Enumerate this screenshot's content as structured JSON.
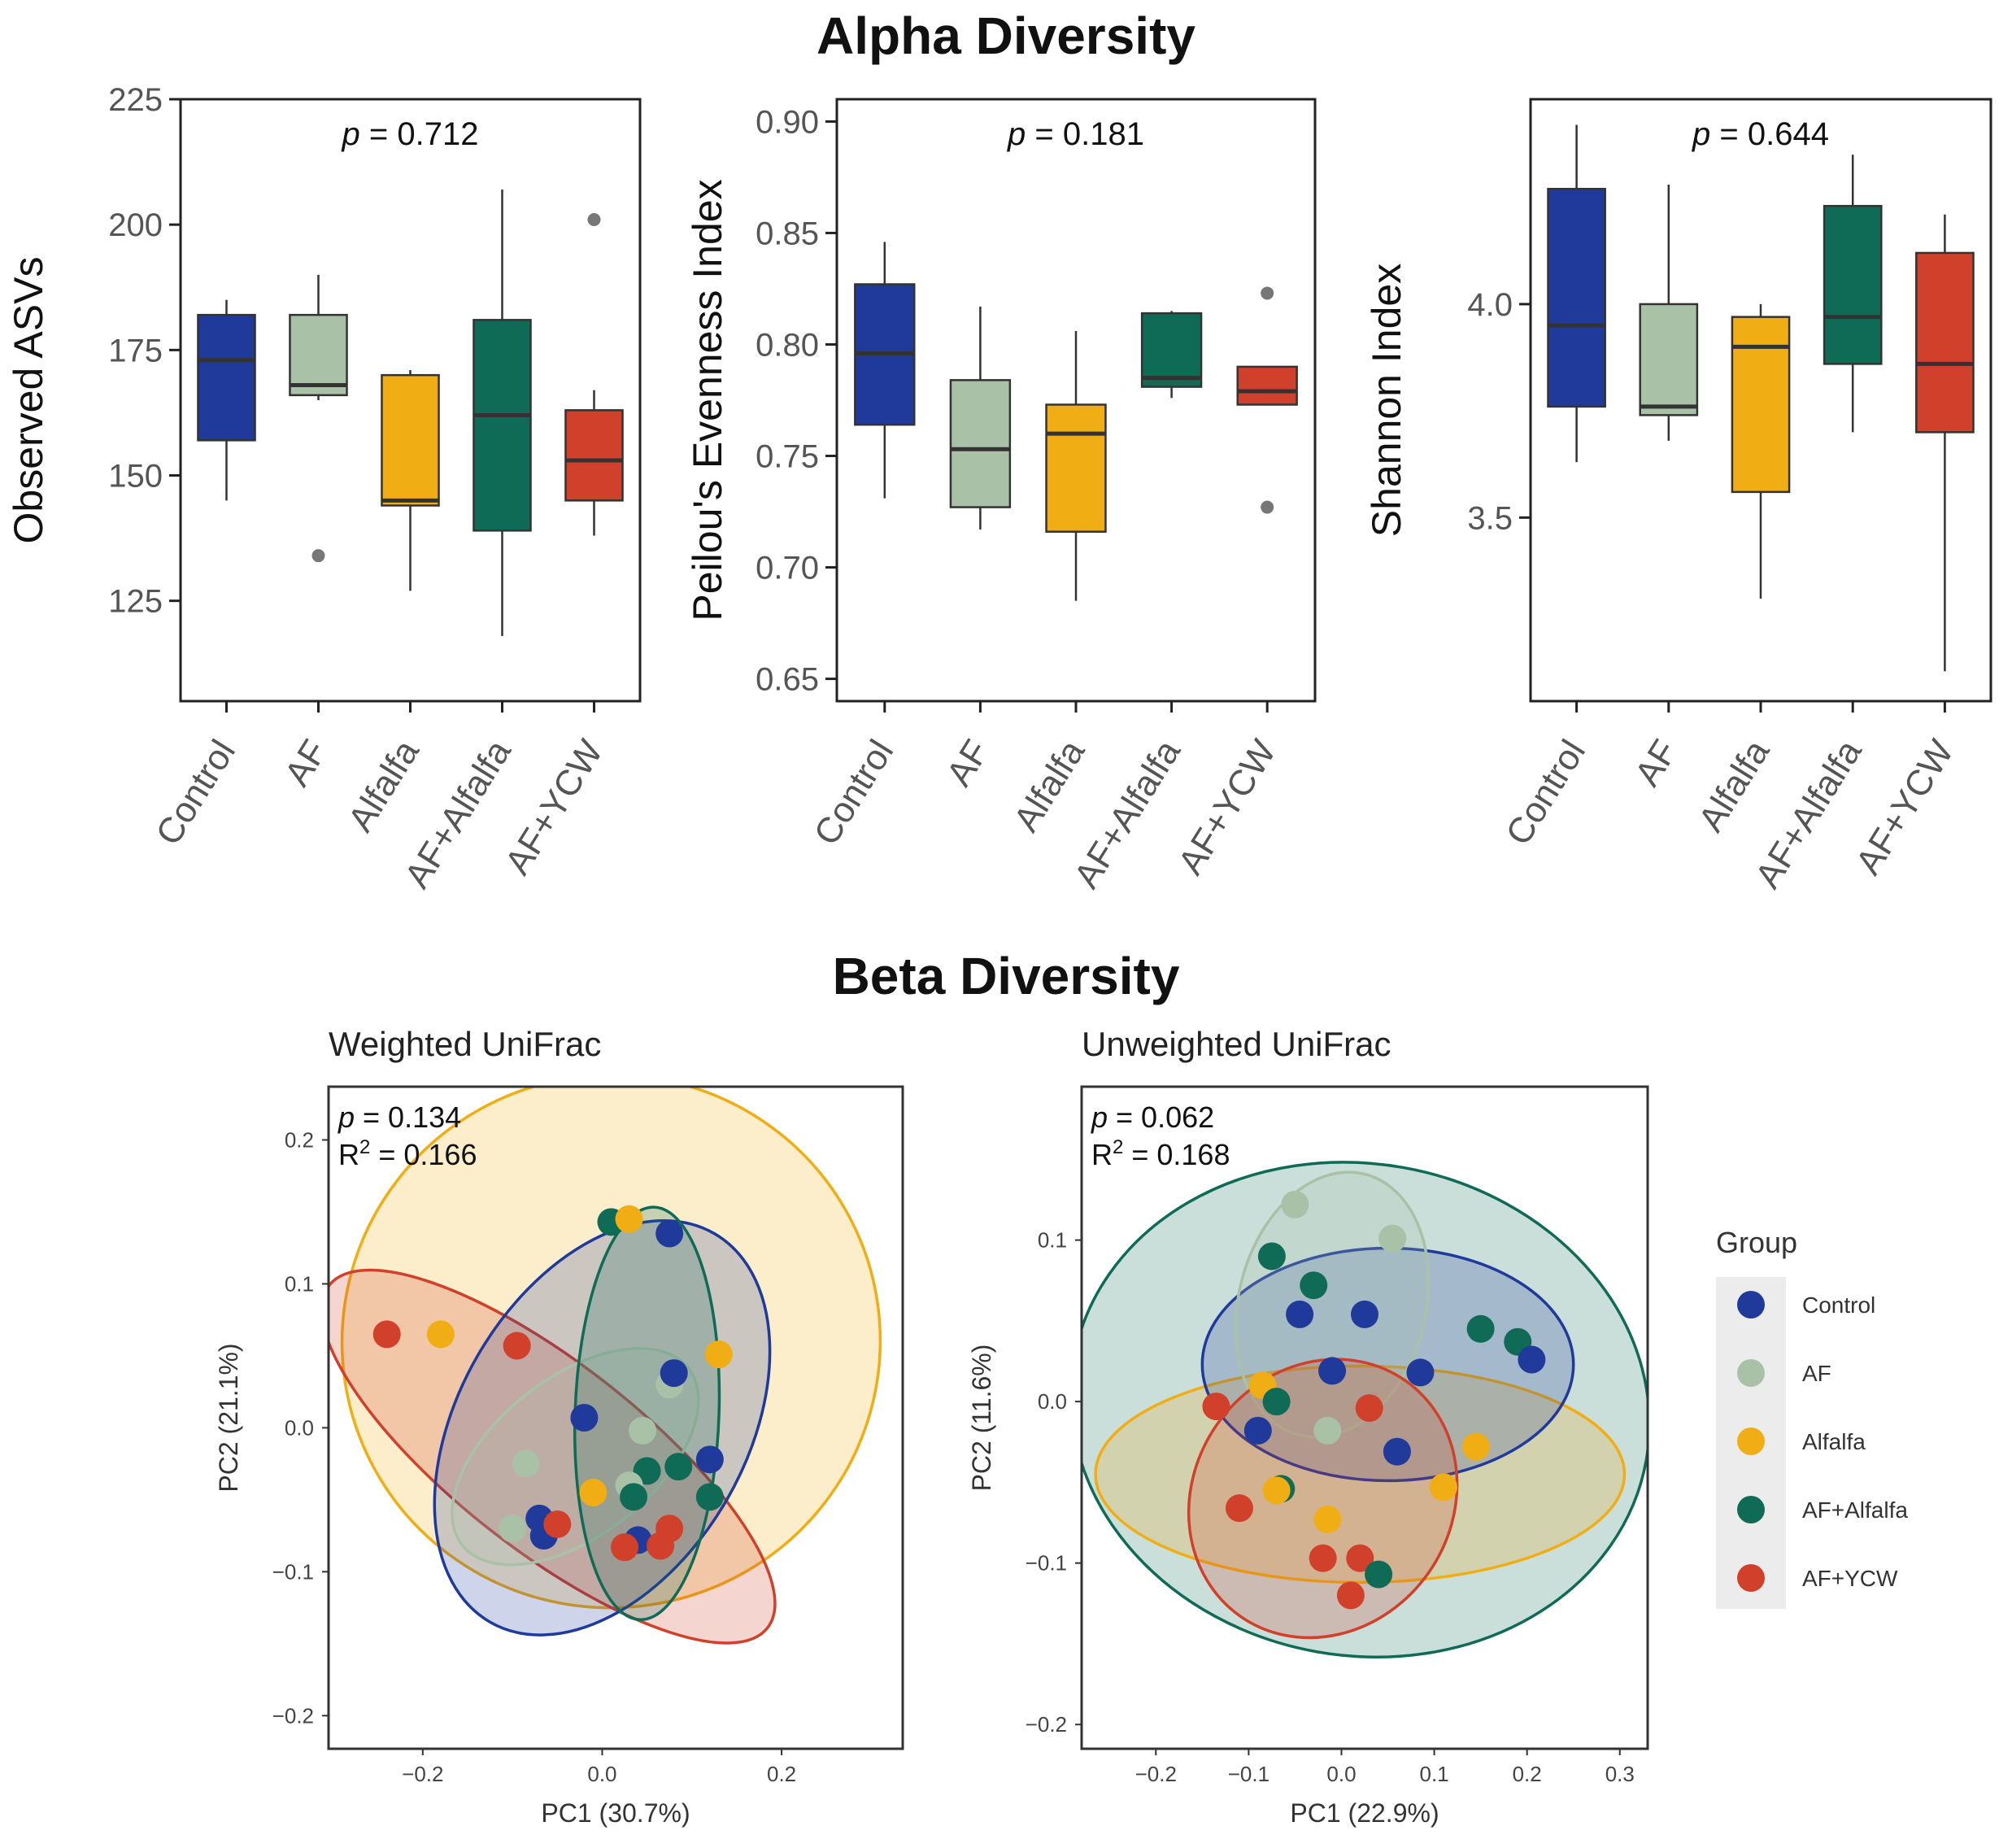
{
  "colors": {
    "Control": "#1f3a9b",
    "AF": "#a9c1a6",
    "Alfalfa": "#f0ad14",
    "AF+Alfalfa": "#0f6b56",
    "AF+YCW": "#d0402a"
  },
  "sections": {
    "alpha_title": "Alpha Diversity",
    "beta_title": "Beta Diversity"
  },
  "legend": {
    "title": "Group",
    "items": [
      "Control",
      "AF",
      "Alfalfa",
      "AF+Alfalfa",
      "AF+YCW"
    ]
  },
  "chart_data": [
    {
      "type": "box",
      "id": "observed",
      "ylabel": "Observed ASVs",
      "ylim": [
        105,
        225
      ],
      "yticks": [
        125,
        150,
        175,
        200,
        225
      ],
      "annotation": {
        "p_symbol": "p",
        "p_text": " = 0.712"
      },
      "categories": [
        "Control",
        "AF",
        "Alfalfa",
        "AF+Alfalfa",
        "AF+YCW"
      ],
      "boxes": [
        {
          "group": "Control",
          "whisker_low": 145,
          "q1": 157,
          "median": 173,
          "q3": 182,
          "whisker_high": 185,
          "outliers": []
        },
        {
          "group": "AF",
          "whisker_low": 165,
          "q1": 166,
          "median": 168,
          "q3": 182,
          "whisker_high": 190,
          "outliers": [
            134
          ]
        },
        {
          "group": "Alfalfa",
          "whisker_low": 127,
          "q1": 144,
          "median": 145,
          "q3": 170,
          "whisker_high": 171,
          "outliers": []
        },
        {
          "group": "AF+Alfalfa",
          "whisker_low": 118,
          "q1": 139,
          "median": 162,
          "q3": 181,
          "whisker_high": 207,
          "outliers": []
        },
        {
          "group": "AF+YCW",
          "whisker_low": 138,
          "q1": 145,
          "median": 153,
          "q3": 163,
          "whisker_high": 167,
          "outliers": [
            201
          ]
        }
      ]
    },
    {
      "type": "box",
      "id": "pielou",
      "ylabel": "Peilou's Evenness Index",
      "ylim": [
        0.64,
        0.91
      ],
      "yticks": [
        0.65,
        0.7,
        0.75,
        0.8,
        0.85,
        0.9
      ],
      "ytick_labels": [
        "0.65",
        "0.70",
        "0.75",
        "0.80",
        "0.85",
        "0.90"
      ],
      "annotation": {
        "p_symbol": "p",
        "p_text": " = 0.181"
      },
      "categories": [
        "Control",
        "AF",
        "Alfalfa",
        "AF+Alfalfa",
        "AF+YCW"
      ],
      "boxes": [
        {
          "group": "Control",
          "whisker_low": 0.731,
          "q1": 0.764,
          "median": 0.796,
          "q3": 0.827,
          "whisker_high": 0.846,
          "outliers": []
        },
        {
          "group": "AF",
          "whisker_low": 0.717,
          "q1": 0.727,
          "median": 0.753,
          "q3": 0.784,
          "whisker_high": 0.817,
          "outliers": []
        },
        {
          "group": "Alfalfa",
          "whisker_low": 0.685,
          "q1": 0.716,
          "median": 0.76,
          "q3": 0.773,
          "whisker_high": 0.806,
          "outliers": []
        },
        {
          "group": "AF+Alfalfa",
          "whisker_low": 0.776,
          "q1": 0.781,
          "median": 0.785,
          "q3": 0.814,
          "whisker_high": 0.815,
          "outliers": []
        },
        {
          "group": "AF+YCW",
          "whisker_low": 0.773,
          "q1": 0.773,
          "median": 0.779,
          "q3": 0.79,
          "whisker_high": 0.79,
          "outliers": [
            0.823,
            0.727
          ]
        }
      ]
    },
    {
      "type": "box",
      "id": "shannon",
      "ylabel": "Shannon Index",
      "ylim": [
        3.07,
        4.48
      ],
      "yticks": [
        3.5,
        4.0
      ],
      "ytick_labels": [
        "3.5",
        "4.0"
      ],
      "annotation": {
        "p_symbol": "p",
        "p_text": " = 0.644"
      },
      "categories": [
        "Control",
        "AF",
        "Alfalfa",
        "AF+Alfalfa",
        "AF+YCW"
      ],
      "boxes": [
        {
          "group": "Control",
          "whisker_low": 3.63,
          "q1": 3.76,
          "median": 3.95,
          "q3": 4.27,
          "whisker_high": 4.42,
          "outliers": []
        },
        {
          "group": "AF",
          "whisker_low": 3.68,
          "q1": 3.74,
          "median": 3.76,
          "q3": 4.0,
          "whisker_high": 4.28,
          "outliers": []
        },
        {
          "group": "Alfalfa",
          "whisker_low": 3.31,
          "q1": 3.56,
          "median": 3.9,
          "q3": 3.97,
          "whisker_high": 4.0,
          "outliers": []
        },
        {
          "group": "AF+Alfalfa",
          "whisker_low": 3.7,
          "q1": 3.86,
          "median": 3.97,
          "q3": 4.23,
          "whisker_high": 4.35,
          "outliers": []
        },
        {
          "group": "AF+YCW",
          "whisker_low": 3.14,
          "q1": 3.7,
          "median": 3.86,
          "q3": 4.12,
          "whisker_high": 4.21,
          "outliers": []
        }
      ]
    },
    {
      "type": "scatter",
      "id": "weighted",
      "title": "Weighted UniFrac",
      "xlabel": "PC1 (30.7%)",
      "ylabel": "PC2 (21.1%)",
      "xlim": [
        -0.305,
        0.335
      ],
      "ylim": [
        -0.223,
        0.237
      ],
      "xticks": [
        -0.2,
        0.0,
        0.2
      ],
      "xtick_labels": [
        "−0.2",
        "0.0",
        "0.2"
      ],
      "yticks": [
        -0.2,
        -0.1,
        0.0,
        0.1,
        0.2
      ],
      "ytick_labels": [
        "−0.2",
        "−0.1",
        "0.0",
        "0.1",
        "0.2"
      ],
      "annotation": {
        "p_symbol": "p",
        "p_text": " = 0.134",
        "r2_prefix": "R",
        "r2_sup": "2",
        "r2_text": " = 0.166"
      },
      "ellipses": [
        {
          "group": "Alfalfa",
          "cx": 0.01,
          "cy": 0.06,
          "rx": 0.3,
          "ry": 0.185,
          "angle": -8
        },
        {
          "group": "AF+YCW",
          "cx": -0.06,
          "cy": -0.02,
          "rx": 0.31,
          "ry": 0.065,
          "angle": 38
        },
        {
          "group": "Control",
          "cx": -0.0,
          "cy": -0.0,
          "rx": 0.25,
          "ry": 0.1,
          "angle": -60
        },
        {
          "group": "AF",
          "cx": -0.03,
          "cy": -0.02,
          "rx": 0.16,
          "ry": 0.055,
          "angle": -38
        },
        {
          "group": "AF+Alfalfa",
          "cx": 0.05,
          "cy": 0.01,
          "rx": 0.23,
          "ry": 0.05,
          "angle": -88
        }
      ],
      "points": [
        {
          "group": "AF+YCW",
          "x": -0.24,
          "y": 0.065
        },
        {
          "group": "Alfalfa",
          "x": -0.18,
          "y": 0.065
        },
        {
          "group": "AF+YCW",
          "x": -0.095,
          "y": 0.057
        },
        {
          "group": "AF+Alfalfa",
          "x": 0.01,
          "y": 0.143
        },
        {
          "group": "Alfalfa",
          "x": 0.03,
          "y": 0.145
        },
        {
          "group": "Control",
          "x": 0.075,
          "y": 0.135
        },
        {
          "group": "Alfalfa",
          "x": 0.13,
          "y": 0.051
        },
        {
          "group": "AF",
          "x": 0.075,
          "y": 0.03
        },
        {
          "group": "Control",
          "x": 0.08,
          "y": 0.038
        },
        {
          "group": "Control",
          "x": -0.02,
          "y": 0.007
        },
        {
          "group": "AF",
          "x": 0.045,
          "y": -0.002
        },
        {
          "group": "Control",
          "x": 0.12,
          "y": -0.022
        },
        {
          "group": "AF+Alfalfa",
          "x": 0.085,
          "y": -0.027
        },
        {
          "group": "AF+Alfalfa",
          "x": 0.05,
          "y": -0.03
        },
        {
          "group": "AF",
          "x": -0.085,
          "y": -0.025
        },
        {
          "group": "AF",
          "x": 0.03,
          "y": -0.04
        },
        {
          "group": "Alfalfa",
          "x": -0.01,
          "y": -0.045
        },
        {
          "group": "AF+Alfalfa",
          "x": 0.035,
          "y": -0.048
        },
        {
          "group": "AF+Alfalfa",
          "x": 0.12,
          "y": -0.048
        },
        {
          "group": "Control",
          "x": -0.07,
          "y": -0.063
        },
        {
          "group": "Control",
          "x": -0.065,
          "y": -0.075
        },
        {
          "group": "AF+YCW",
          "x": -0.05,
          "y": -0.067
        },
        {
          "group": "AF+YCW",
          "x": 0.075,
          "y": -0.07
        },
        {
          "group": "Control",
          "x": 0.04,
          "y": -0.078
        },
        {
          "group": "AF+YCW",
          "x": 0.025,
          "y": -0.083
        },
        {
          "group": "AF+YCW",
          "x": 0.065,
          "y": -0.082
        },
        {
          "group": "AF",
          "x": -0.1,
          "y": -0.07
        }
      ]
    },
    {
      "type": "scatter",
      "id": "unweighted",
      "title": "Unweighted UniFrac",
      "xlabel": "PC1 (22.9%)",
      "ylabel": "PC2 (11.6%)",
      "xlim": [
        -0.28,
        0.33
      ],
      "ylim": [
        -0.215,
        0.195
      ],
      "xticks": [
        -0.2,
        -0.1,
        0.0,
        0.1,
        0.2,
        0.3
      ],
      "xtick_labels": [
        "−0.2",
        "−0.1",
        "0.0",
        "0.1",
        "0.2",
        "0.3"
      ],
      "yticks": [
        -0.2,
        -0.1,
        0.0,
        0.1
      ],
      "ytick_labels": [
        "−0.2",
        "−0.1",
        "0.0",
        "0.1"
      ],
      "annotation": {
        "p_symbol": "p",
        "p_text": " = 0.062",
        "r2_prefix": "R",
        "r2_sup": "2",
        "r2_text": " = 0.168"
      },
      "ellipses": [
        {
          "group": "AF+Alfalfa",
          "cx": 0.02,
          "cy": -0.005,
          "rx": 0.265,
          "ry": 0.18,
          "angle": -80
        },
        {
          "group": "Alfalfa",
          "cx": 0.02,
          "cy": -0.045,
          "rx": 0.285,
          "ry": 0.067,
          "angle": 0
        },
        {
          "group": "Control",
          "cx": 0.05,
          "cy": 0.023,
          "rx": 0.2,
          "ry": 0.072,
          "angle": 0
        },
        {
          "group": "AF",
          "cx": -0.01,
          "cy": 0.06,
          "rx": 0.145,
          "ry": 0.058,
          "angle": -76
        },
        {
          "group": "AF+YCW",
          "cx": -0.02,
          "cy": -0.06,
          "rx": 0.155,
          "ry": 0.08,
          "angle": -55
        }
      ],
      "points": [
        {
          "group": "AF",
          "x": -0.05,
          "y": 0.122
        },
        {
          "group": "AF",
          "x": 0.055,
          "y": 0.101
        },
        {
          "group": "AF+Alfalfa",
          "x": -0.075,
          "y": 0.09
        },
        {
          "group": "AF+Alfalfa",
          "x": -0.03,
          "y": 0.072
        },
        {
          "group": "Control",
          "x": -0.045,
          "y": 0.054
        },
        {
          "group": "Control",
          "x": 0.025,
          "y": 0.054
        },
        {
          "group": "AF+Alfalfa",
          "x": 0.15,
          "y": 0.045
        },
        {
          "group": "AF+Alfalfa",
          "x": 0.19,
          "y": 0.037
        },
        {
          "group": "Control",
          "x": 0.205,
          "y": 0.026
        },
        {
          "group": "Control",
          "x": -0.01,
          "y": 0.019
        },
        {
          "group": "Control",
          "x": 0.085,
          "y": 0.018
        },
        {
          "group": "Alfalfa",
          "x": -0.085,
          "y": 0.01
        },
        {
          "group": "AF+Alfalfa",
          "x": -0.07,
          "y": 0.0
        },
        {
          "group": "AF+YCW",
          "x": -0.135,
          "y": -0.003
        },
        {
          "group": "AF+YCW",
          "x": 0.03,
          "y": -0.004
        },
        {
          "group": "Control",
          "x": -0.09,
          "y": -0.018
        },
        {
          "group": "AF",
          "x": -0.015,
          "y": -0.018
        },
        {
          "group": "Control",
          "x": 0.06,
          "y": -0.031
        },
        {
          "group": "Alfalfa",
          "x": 0.145,
          "y": -0.028
        },
        {
          "group": "AF+Alfalfa",
          "x": -0.065,
          "y": -0.054
        },
        {
          "group": "Alfalfa",
          "x": -0.07,
          "y": -0.055
        },
        {
          "group": "Alfalfa",
          "x": 0.11,
          "y": -0.053
        },
        {
          "group": "AF+YCW",
          "x": -0.11,
          "y": -0.066
        },
        {
          "group": "Alfalfa",
          "x": -0.015,
          "y": -0.073
        },
        {
          "group": "AF+YCW",
          "x": -0.02,
          "y": -0.097
        },
        {
          "group": "AF+YCW",
          "x": 0.02,
          "y": -0.097
        },
        {
          "group": "AF+Alfalfa",
          "x": 0.04,
          "y": -0.107
        },
        {
          "group": "AF+YCW",
          "x": 0.01,
          "y": -0.12
        }
      ]
    }
  ]
}
